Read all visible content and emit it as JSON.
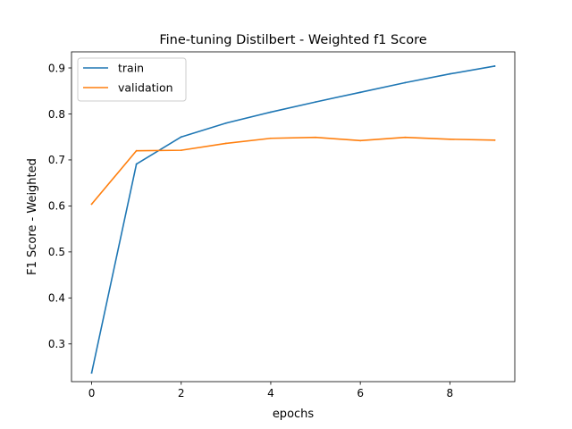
{
  "chart_data": {
    "type": "line",
    "title": "Fine-tuning Distilbert - Weighted f1 Score",
    "xlabel": "epochs",
    "ylabel": "F1 Score - Weighted",
    "x": [
      0,
      1,
      2,
      3,
      4,
      5,
      6,
      7,
      8,
      9
    ],
    "xlim": [
      -0.45,
      9.45
    ],
    "ylim": [
      0.218,
      0.935
    ],
    "xticks": [
      0,
      2,
      4,
      6,
      8
    ],
    "yticks": [
      0.3,
      0.4,
      0.5,
      0.6,
      0.7,
      0.8,
      0.9
    ],
    "grid": false,
    "legend_position": "top-left",
    "series": [
      {
        "name": "train",
        "color": "#1f77b4",
        "values": [
          0.237,
          0.691,
          0.75,
          0.78,
          0.804,
          0.826,
          0.847,
          0.868,
          0.887,
          0.904
        ]
      },
      {
        "name": "validation",
        "color": "#ff7f0e",
        "values": [
          0.604,
          0.72,
          0.721,
          0.736,
          0.747,
          0.749,
          0.742,
          0.749,
          0.745,
          0.743
        ]
      }
    ]
  }
}
